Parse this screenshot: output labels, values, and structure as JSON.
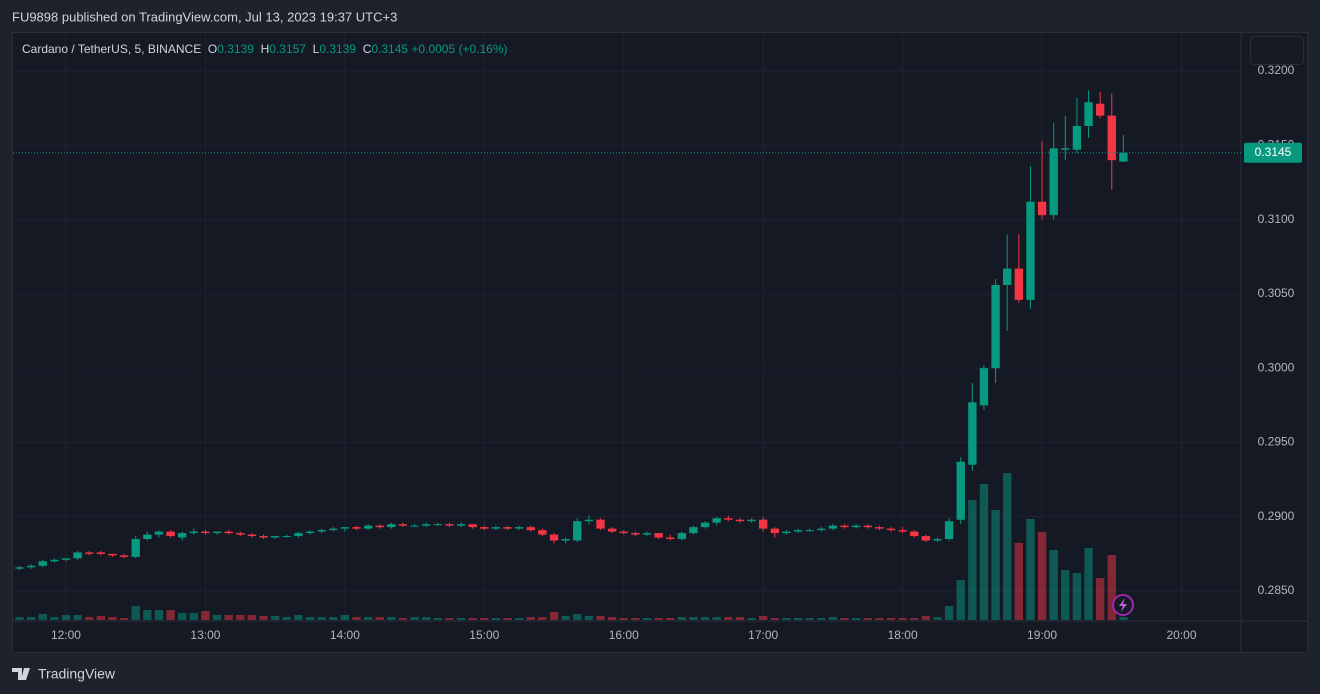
{
  "header": {
    "published": "FU9898 published on TradingView.com, Jul 13, 2023 19:37 UTC+3"
  },
  "footer": {
    "brand": "TradingView"
  },
  "chart_data": {
    "type": "candlestick",
    "title": "Cardano / TetherUS, 5, BINANCE",
    "ohlc_labels": [
      "O",
      "H",
      "L",
      "C"
    ],
    "change_label": "+0.0005 (+0.16%)",
    "up_color": "#089981",
    "down_color": "#f23645",
    "grid": true,
    "categories": [
      null,
      null,
      null,
      null,
      "12:00",
      null,
      null,
      null,
      null,
      null,
      null,
      null,
      null,
      null,
      null,
      null,
      "13:00",
      null,
      null,
      null,
      null,
      null,
      null,
      null,
      null,
      null,
      null,
      null,
      "14:00",
      null,
      null,
      null,
      null,
      null,
      null,
      null,
      null,
      null,
      null,
      null,
      "15:00",
      null,
      null,
      null,
      null,
      null,
      null,
      null,
      null,
      null,
      null,
      null,
      "16:00",
      null,
      null,
      null,
      null,
      null,
      null,
      null,
      null,
      null,
      null,
      null,
      "17:00",
      null,
      null,
      null,
      null,
      null,
      null,
      null,
      null,
      null,
      null,
      null,
      "18:00",
      null,
      null,
      null,
      null,
      null,
      null,
      null,
      null,
      null,
      null,
      null,
      "19:00",
      null,
      null,
      null,
      null,
      null,
      null,
      null,
      null,
      null,
      null,
      null,
      "20:00"
    ],
    "open": [
      0.2865,
      0.2866,
      0.2867,
      0.287,
      0.2871,
      0.2872,
      0.2876,
      0.2876,
      0.2875,
      0.2874,
      0.2873,
      0.2885,
      0.2888,
      0.289,
      0.2886,
      0.2889,
      0.289,
      0.2889,
      0.289,
      0.2889,
      0.2888,
      0.2887,
      0.2886,
      0.2887,
      0.2887,
      0.2889,
      0.289,
      0.2891,
      0.2892,
      0.2893,
      0.2892,
      0.2894,
      0.2893,
      0.2895,
      0.2894,
      0.2894,
      0.2895,
      0.2895,
      0.2894,
      0.2895,
      0.2893,
      0.2892,
      0.2893,
      0.2892,
      0.2893,
      0.2891,
      0.2888,
      0.2884,
      0.2884,
      0.2897,
      0.2898,
      0.2892,
      0.289,
      0.2889,
      0.2888,
      0.2889,
      0.2886,
      0.2885,
      0.2889,
      0.2893,
      0.2896,
      0.2899,
      0.2898,
      0.2897,
      0.2898,
      0.2892,
      0.2889,
      0.289,
      0.2891,
      0.2891,
      0.2892,
      0.2894,
      0.2893,
      0.2894,
      0.2893,
      0.2892,
      0.2891,
      0.289,
      0.2887,
      0.2884,
      0.2885,
      0.2898,
      0.2935,
      0.2975,
      0.3,
      0.3056,
      0.3067,
      0.3046,
      0.3112,
      0.3103,
      0.3147,
      0.3147,
      0.3163,
      0.3178,
      0.317,
      0.3139,
      null,
      null,
      null,
      null,
      null
    ],
    "high": [
      0.2867,
      0.2868,
      0.2871,
      0.2872,
      0.2872,
      0.2877,
      0.2877,
      0.2877,
      0.2875,
      0.2875,
      0.2887,
      0.289,
      0.2891,
      0.2891,
      0.289,
      0.2892,
      0.2891,
      0.289,
      0.2891,
      0.289,
      0.2889,
      0.2888,
      0.2887,
      0.2888,
      0.289,
      0.2891,
      0.2892,
      0.2893,
      0.2893,
      0.2894,
      0.2895,
      0.2895,
      0.2896,
      0.2896,
      0.2895,
      0.2896,
      0.2896,
      0.2896,
      0.2896,
      0.2895,
      0.2894,
      0.2894,
      0.2894,
      0.2894,
      0.2894,
      0.2892,
      0.2889,
      0.2886,
      0.2899,
      0.2901,
      0.2899,
      0.2893,
      0.2891,
      0.289,
      0.289,
      0.2889,
      0.2888,
      0.289,
      0.2894,
      0.2897,
      0.29,
      0.2901,
      0.2899,
      0.2899,
      0.29,
      0.2893,
      0.2891,
      0.2892,
      0.2892,
      0.2893,
      0.2895,
      0.2895,
      0.2895,
      0.2895,
      0.2894,
      0.2893,
      0.2893,
      0.2891,
      0.2888,
      0.2886,
      0.2899,
      0.294,
      0.299,
      0.3002,
      0.306,
      0.309,
      0.309,
      0.3136,
      0.3153,
      0.3165,
      0.317,
      0.3182,
      0.3187,
      0.3186,
      0.3185,
      0.3157,
      null,
      null,
      null,
      null,
      null
    ],
    "low": [
      0.2864,
      0.2865,
      0.2866,
      0.2869,
      0.287,
      0.2871,
      0.2874,
      0.2874,
      0.2873,
      0.2872,
      0.2872,
      0.2884,
      0.2886,
      0.2886,
      0.2884,
      0.2888,
      0.2888,
      0.2888,
      0.2888,
      0.2887,
      0.2886,
      0.2885,
      0.2885,
      0.2886,
      0.2886,
      0.2888,
      0.2889,
      0.289,
      0.289,
      0.2891,
      0.2891,
      0.2892,
      0.2892,
      0.2893,
      0.2893,
      0.2893,
      0.2894,
      0.2893,
      0.2893,
      0.2892,
      0.2891,
      0.2891,
      0.2891,
      0.2891,
      0.289,
      0.2887,
      0.2882,
      0.2882,
      0.2883,
      0.2895,
      0.2891,
      0.2889,
      0.2888,
      0.2887,
      0.2887,
      0.2885,
      0.2884,
      0.2884,
      0.2888,
      0.2892,
      0.2894,
      0.2897,
      0.2896,
      0.2896,
      0.289,
      0.2886,
      0.2888,
      0.2889,
      0.289,
      0.289,
      0.2891,
      0.2892,
      0.2892,
      0.2892,
      0.2891,
      0.289,
      0.2889,
      0.2886,
      0.2883,
      0.2883,
      0.2884,
      0.2895,
      0.2931,
      0.2972,
      0.299,
      0.3025,
      0.3044,
      0.304,
      0.31,
      0.31,
      0.314,
      0.3145,
      0.3155,
      0.3168,
      0.312,
      0.3139,
      null,
      null,
      null,
      null,
      null
    ],
    "close": [
      0.2866,
      0.2867,
      0.287,
      0.2871,
      0.2872,
      0.2876,
      0.2875,
      0.2875,
      0.2874,
      0.2873,
      0.2885,
      0.2888,
      0.289,
      0.2887,
      0.2889,
      0.289,
      0.2889,
      0.289,
      0.2889,
      0.2888,
      0.2887,
      0.2886,
      0.2887,
      0.2887,
      0.2889,
      0.289,
      0.2891,
      0.2892,
      0.2893,
      0.2892,
      0.2894,
      0.2893,
      0.2895,
      0.2894,
      0.2894,
      0.2895,
      0.2895,
      0.2894,
      0.2895,
      0.2893,
      0.2892,
      0.2893,
      0.2892,
      0.2893,
      0.2891,
      0.2888,
      0.2884,
      0.2885,
      0.2897,
      0.2898,
      0.2892,
      0.289,
      0.2889,
      0.2888,
      0.2889,
      0.2886,
      0.2885,
      0.2889,
      0.2893,
      0.2896,
      0.2899,
      0.2898,
      0.2897,
      0.2898,
      0.2892,
      0.2889,
      0.289,
      0.2891,
      0.2891,
      0.2892,
      0.2894,
      0.2893,
      0.2894,
      0.2893,
      0.2892,
      0.2891,
      0.289,
      0.2887,
      0.2884,
      0.2885,
      0.2897,
      0.2937,
      0.2977,
      0.3,
      0.3056,
      0.3067,
      0.3046,
      0.3112,
      0.3103,
      0.3148,
      0.3148,
      0.3163,
      0.3179,
      0.317,
      0.314,
      0.3145,
      null,
      null,
      null,
      null,
      null
    ],
    "volume": [
      3,
      3,
      6,
      3,
      5,
      5,
      3,
      4,
      3,
      2,
      14,
      10,
      10,
      10,
      7,
      7,
      9,
      5,
      5,
      5,
      5,
      4,
      4,
      3,
      5,
      3,
      3,
      3,
      5,
      3,
      3,
      3,
      3,
      2,
      3,
      3,
      2,
      2,
      2,
      2,
      2,
      2,
      2,
      2,
      3,
      3,
      8,
      4,
      6,
      4,
      4,
      3,
      2,
      2,
      2,
      2,
      2,
      3,
      3,
      3,
      3,
      3,
      3,
      2,
      4,
      2,
      2,
      2,
      2,
      2,
      3,
      2,
      2,
      2,
      2,
      2,
      2,
      2,
      4,
      3,
      14,
      40,
      120,
      136,
      110,
      147,
      77,
      101,
      88,
      70,
      50,
      47,
      72,
      42,
      65,
      3,
      null,
      null,
      null,
      null,
      null
    ],
    "ylim": [
      0.28305,
      0.32256
    ],
    "yticks": [
      {
        "value": 0.285,
        "label": "0.2850"
      },
      {
        "value": 0.29,
        "label": "0.2900"
      },
      {
        "value": 0.295,
        "label": "0.2950"
      },
      {
        "value": 0.3,
        "label": "0.3000"
      },
      {
        "value": 0.305,
        "label": "0.3050"
      },
      {
        "value": 0.31,
        "label": "0.3100"
      },
      {
        "value": 0.315,
        "label": "0.3150"
      },
      {
        "value": 0.32,
        "label": "0.3200"
      }
    ],
    "y2lim": [
      0,
      587
    ]
  }
}
